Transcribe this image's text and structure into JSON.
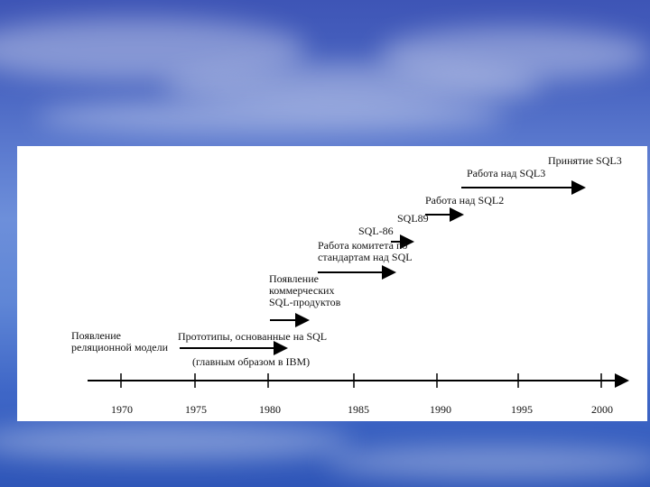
{
  "timeline": {
    "years": [
      "1970",
      "1975",
      "1980",
      "1985",
      "1990",
      "1995",
      "2000"
    ],
    "events": {
      "relational_model": "Появление реляционной модели",
      "prototypes": "Прототипы, основанные на SQL",
      "prototypes_note": "(главным образом в IBM)",
      "commercial": "Появление коммерческих SQL-продуктов",
      "committee": "Работа комитета по стандартам над SQL",
      "sql86": "SQL-86",
      "sql89": "SQL89",
      "sql2_work": "Работа над SQL2",
      "sql3_work": "Работа над SQL3",
      "sql3_adoption": "Принятие SQL3"
    }
  }
}
